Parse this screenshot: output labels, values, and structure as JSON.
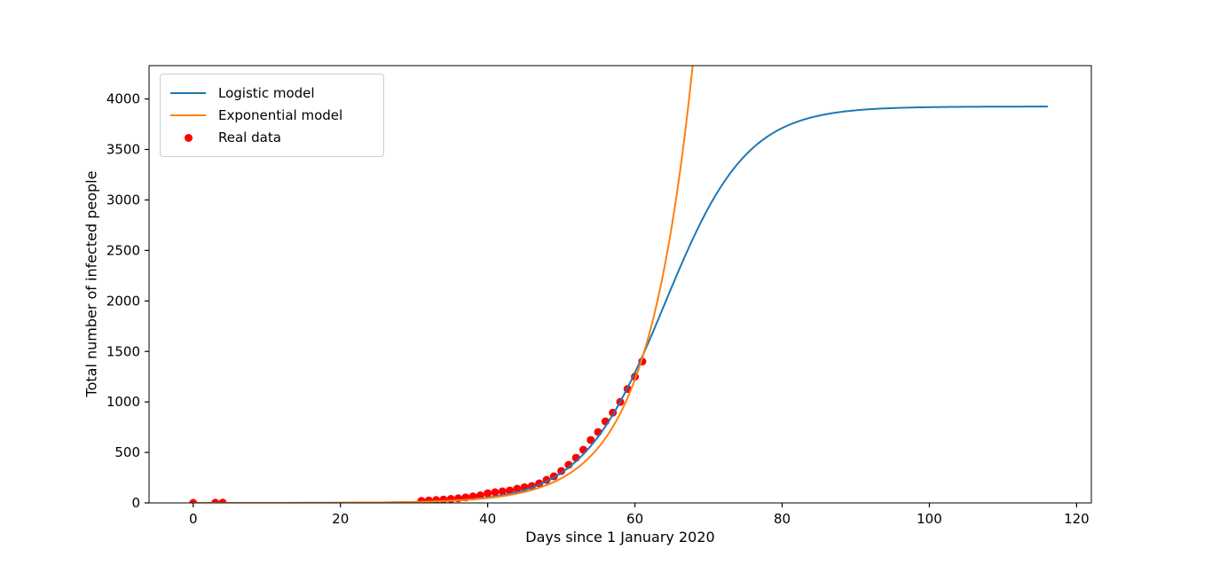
{
  "chart_data": {
    "type": "line+scatter",
    "title": "",
    "xlabel": "Days since 1 January 2020",
    "ylabel": "Total number of infected people",
    "xlim": [
      -6,
      122
    ],
    "ylim": [
      0,
      4330
    ],
    "xticks": [
      0,
      20,
      40,
      60,
      80,
      100,
      120
    ],
    "yticks": [
      0,
      500,
      1000,
      1500,
      2000,
      2500,
      3000,
      3500,
      4000
    ],
    "grid": false,
    "legend": {
      "position": "upper-left",
      "entries": [
        {
          "label": "Logistic model",
          "swatch": "line",
          "color": "#1f77b4"
        },
        {
          "label": "Exponential model",
          "swatch": "line",
          "color": "#ff7f0e"
        },
        {
          "label": "Real data",
          "swatch": "dot",
          "color": "#ff0000"
        }
      ]
    },
    "series": [
      {
        "name": "Logistic model",
        "type": "line",
        "color": "#1f77b4",
        "model": "logistic",
        "params": {
          "L": 3925,
          "t0": 64,
          "k": 5.6
        },
        "t_range": [
          0,
          116
        ],
        "line_width": 2
      },
      {
        "name": "Exponential model",
        "type": "line",
        "color": "#ff7f0e",
        "model": "exponential",
        "params": {
          "A": 0.0766,
          "tau": 6.2
        },
        "t_range": [
          0,
          116
        ],
        "line_width": 2
      },
      {
        "name": "Real data",
        "type": "scatter",
        "color": "#ff0000",
        "marker_radius": 4.5,
        "points": [
          [
            0,
            0
          ],
          [
            3,
            2
          ],
          [
            4,
            2
          ],
          [
            31,
            20
          ],
          [
            32,
            24
          ],
          [
            33,
            28
          ],
          [
            34,
            33
          ],
          [
            35,
            39
          ],
          [
            36,
            46
          ],
          [
            37,
            54
          ],
          [
            38,
            64
          ],
          [
            39,
            75
          ],
          [
            40,
            95
          ],
          [
            41,
            105
          ],
          [
            42,
            114
          ],
          [
            43,
            123
          ],
          [
            44,
            140
          ],
          [
            45,
            155
          ],
          [
            46,
            167
          ],
          [
            47,
            193
          ],
          [
            48,
            228
          ],
          [
            49,
            263
          ],
          [
            50,
            316
          ],
          [
            51,
            377
          ],
          [
            52,
            447
          ],
          [
            53,
            526
          ],
          [
            54,
            623
          ],
          [
            55,
            702
          ],
          [
            56,
            807
          ],
          [
            57,
            894
          ],
          [
            58,
            1000
          ],
          [
            59,
            1128
          ],
          [
            60,
            1250
          ],
          [
            61,
            1400
          ]
        ]
      }
    ]
  }
}
